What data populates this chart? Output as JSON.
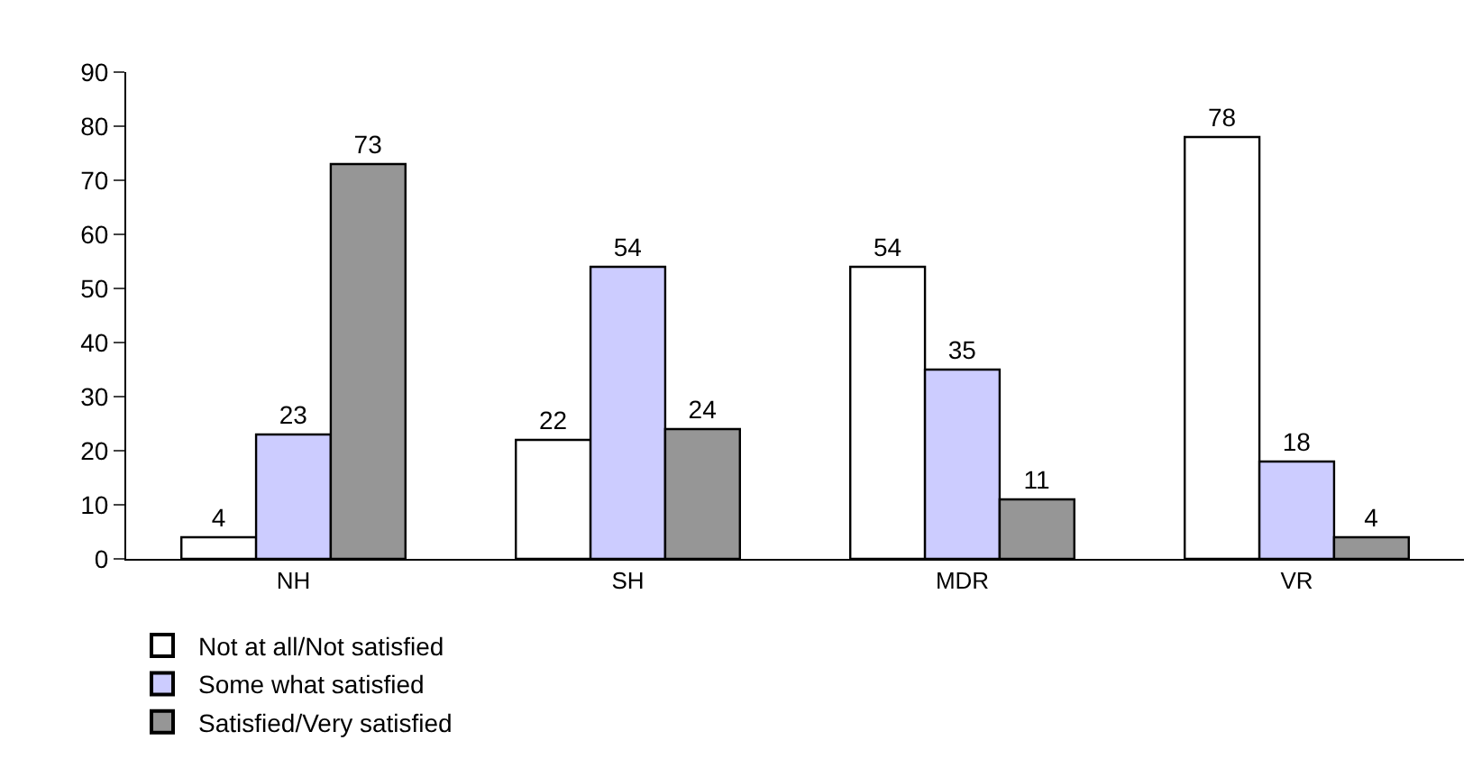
{
  "chart_data": {
    "type": "bar",
    "categories": [
      "NH",
      "SH",
      "MDR",
      "VR"
    ],
    "series": [
      {
        "name": "Not at all/Not satisfied",
        "color": "#ffffff",
        "values": [
          4,
          22,
          54,
          78
        ]
      },
      {
        "name": "Some what satisfied",
        "color": "#ccccff",
        "values": [
          23,
          54,
          35,
          18
        ]
      },
      {
        "name": "Satisfied/Very satisfied",
        "color": "#969696",
        "values": [
          73,
          24,
          11,
          4
        ]
      }
    ],
    "ylim": [
      0,
      90
    ],
    "yticks": [
      0,
      10,
      20,
      30,
      40,
      50,
      60,
      70,
      80,
      90
    ],
    "grid": false,
    "legend": "bottom left",
    "data_labels": true
  }
}
